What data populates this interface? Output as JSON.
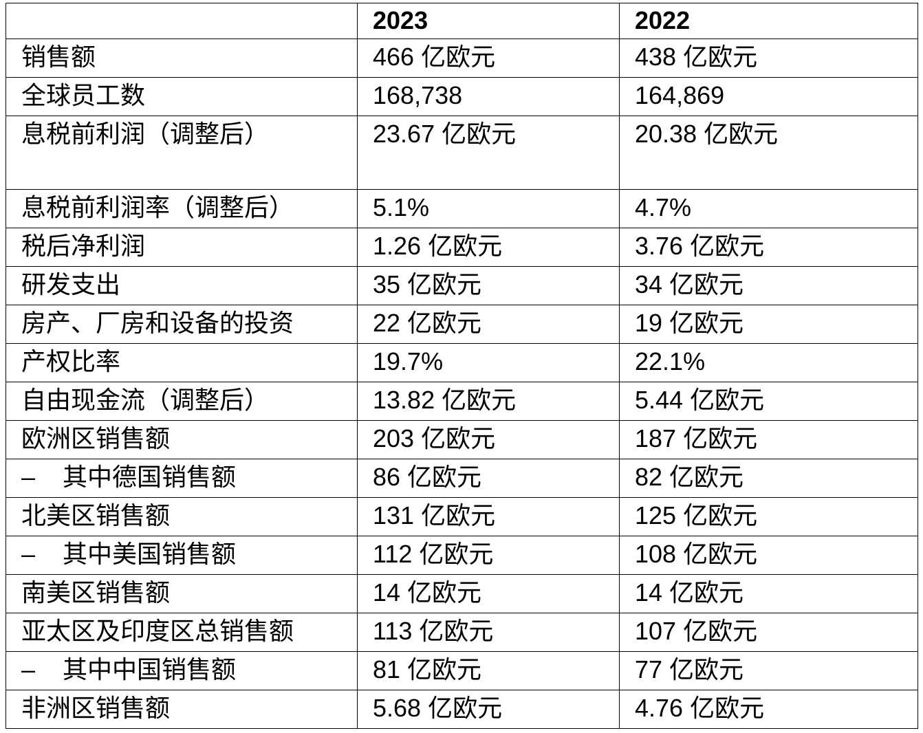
{
  "table": {
    "header": [
      "2023",
      "2022"
    ],
    "rows": [
      [
        "销售额",
        "466 亿欧元",
        "438 亿欧元"
      ],
      [
        "全球员工数",
        "168,738",
        "164,869"
      ],
      [
        "息税前利润（调整后）",
        "23.67 亿欧元",
        "20.38 亿欧元"
      ],
      [
        "息税前利润率（调整后）",
        "5.1%",
        "4.7%"
      ],
      [
        "税后净利润",
        "1.26 亿欧元",
        "3.76 亿欧元"
      ],
      [
        "研发支出",
        "35 亿欧元",
        "34 亿欧元"
      ],
      [
        "房产、厂房和设备的投资",
        "22 亿欧元",
        "19 亿欧元"
      ],
      [
        "产权比率",
        "19.7%",
        "22.1%"
      ],
      [
        "自由现金流（调整后）",
        "13.82 亿欧元",
        "5.44 亿欧元"
      ],
      [
        "欧洲区销售额",
        "203 亿欧元",
        "187 亿欧元"
      ],
      [
        "–    其中德国销售额",
        "86 亿欧元",
        "82 亿欧元"
      ],
      [
        "北美区销售额",
        "131 亿欧元",
        "125 亿欧元"
      ],
      [
        "–    其中美国销售额",
        "112 亿欧元",
        "108 亿欧元"
      ],
      [
        "南美区销售额",
        "14 亿欧元",
        "14 亿欧元"
      ],
      [
        "亚太区及印度区总销售额",
        "113 亿欧元",
        "107 亿欧元"
      ],
      [
        "–    其中中国销售额",
        "81 亿欧元",
        "77 亿欧元"
      ],
      [
        "非洲区销售额",
        "5.68 亿欧元",
        "4.76 亿欧元"
      ]
    ]
  }
}
